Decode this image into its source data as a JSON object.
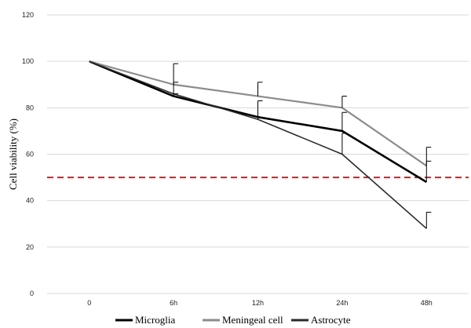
{
  "chart_data": {
    "type": "line",
    "title": "",
    "xlabel": "",
    "ylabel": "Cell viability (%)",
    "categories": [
      "0",
      "6h",
      "12h",
      "24h",
      "48h"
    ],
    "ylim": [
      0,
      120
    ],
    "yticks": [
      0,
      20,
      40,
      60,
      80,
      100,
      120
    ],
    "grid": true,
    "legend_position": "bottom",
    "threshold": {
      "value": 50,
      "color": "#e8161b",
      "style": "dashed"
    },
    "series": [
      {
        "name": "Microglia",
        "values": [
          100,
          85,
          76,
          70,
          48
        ],
        "errors": [
          0,
          1,
          7,
          8,
          9
        ],
        "color": "#000000",
        "width": 2.6
      },
      {
        "name": "Meningeal cell",
        "values": [
          100,
          90,
          85,
          80,
          55
        ],
        "errors": [
          0,
          9,
          6,
          5,
          8
        ],
        "color": "#8c8c8c",
        "width": 2.2
      },
      {
        "name": "Astrocyte",
        "values": [
          100,
          86,
          75,
          60,
          28
        ],
        "errors": [
          0,
          5,
          8,
          9,
          7
        ],
        "color": "#2b2b2b",
        "width": 1.6
      }
    ]
  }
}
